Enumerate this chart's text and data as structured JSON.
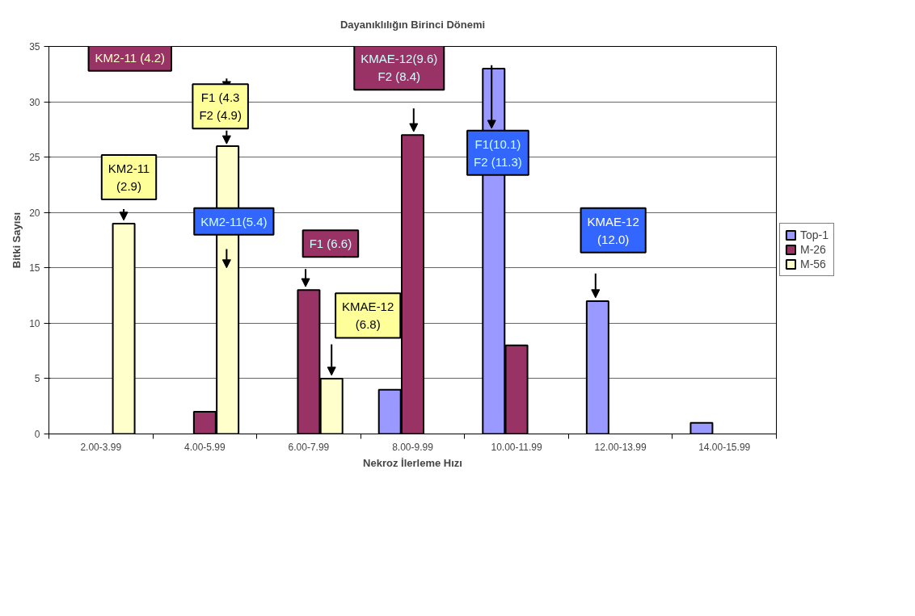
{
  "chart_data": {
    "type": "bar",
    "title": "Dayanıklılığın Birinci Dönemi",
    "xlabel": "Nekroz İlerleme Hızı",
    "ylabel": "Bitki Sayısı",
    "categories": [
      "2.00-3.99",
      "4.00-5.99",
      "6.00-7.99",
      "8.00-9.99",
      "10.00-11.99",
      "12.00-13.99",
      "14.00-15.99"
    ],
    "series": [
      {
        "name": "Top-1",
        "color": "#9999ff",
        "values": [
          null,
          null,
          null,
          4,
          33,
          12,
          1
        ]
      },
      {
        "name": "M-26",
        "color": "#993366",
        "values": [
          null,
          2,
          13,
          27,
          8,
          null,
          null
        ]
      },
      {
        "name": "M-56",
        "color": "#ffffcc",
        "values": [
          19,
          26,
          5,
          null,
          null,
          null,
          null
        ]
      }
    ],
    "ylim": [
      0,
      35
    ],
    "yticks": [
      0,
      5,
      10,
      15,
      20,
      25,
      30,
      35
    ],
    "grid": "y",
    "legend": "right",
    "annotations": [
      "KM2-11 (4.2)",
      "F1 (4.3\nF2 (4.9)",
      "KM2-11\n(2.9)",
      "KM2-11(5.4)",
      "F1 (6.6)",
      "KMAE-12\n(6.8)",
      "KMAE-12(9.6)\nF2 (8.4)",
      "F1(10.1)\nF2 (11.3)",
      "KMAE-12\n(12.0)"
    ]
  }
}
